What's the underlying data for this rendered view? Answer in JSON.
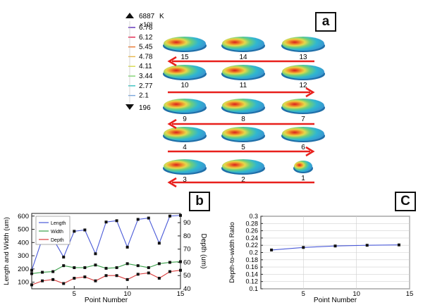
{
  "panel_labels": {
    "a": "a",
    "b": "b",
    "c": "C"
  },
  "colorbar": {
    "max_label": "6887",
    "unit": "K",
    "exponent": "×10³",
    "ticks": [
      "6.78",
      "6.12",
      "5.45",
      "4.78",
      "4.11",
      "3.44",
      "2.77",
      "2.1"
    ],
    "min_label": "196",
    "colors": [
      "#5b2bb5",
      "#e0204a",
      "#e8742b",
      "#e8b64a",
      "#d7d84b",
      "#7cd36e",
      "#35c0bf",
      "#7aa6dc"
    ]
  },
  "pools": {
    "numbers": [
      "15",
      "14",
      "13",
      "10",
      "11",
      "12",
      "9",
      "8",
      "7",
      "4",
      "5",
      "6",
      "3",
      "2",
      "1"
    ],
    "arrow_color": "#e8201c"
  },
  "chart_data": [
    {
      "id": "b",
      "type": "line",
      "xlabel": "Point Number",
      "ylabel": "Length and Width (um)",
      "y2label": "Depth (um)",
      "xlim": [
        1,
        15
      ],
      "ylim": [
        50,
        620
      ],
      "y2lim": [
        40,
        97
      ],
      "xticks": [
        5,
        10,
        15
      ],
      "yticks": [
        100,
        200,
        300,
        400,
        500,
        600
      ],
      "y2ticks": [
        40,
        50,
        60,
        70,
        80,
        90
      ],
      "legend": "top-left",
      "series": [
        {
          "name": "Length",
          "axis": "left",
          "color": "#4a5ad8",
          "x": [
            1,
            2,
            3,
            4,
            5,
            6,
            7,
            8,
            9,
            10,
            11,
            12,
            13,
            14,
            15
          ],
          "values": [
            190,
            430,
            430,
            290,
            485,
            495,
            315,
            555,
            565,
            365,
            575,
            585,
            395,
            600,
            605
          ]
        },
        {
          "name": "Width",
          "axis": "left",
          "color": "#3aa04a",
          "x": [
            1,
            2,
            3,
            4,
            5,
            6,
            7,
            8,
            9,
            10,
            11,
            12,
            13,
            14,
            15
          ],
          "values": [
            165,
            175,
            180,
            225,
            210,
            210,
            230,
            205,
            210,
            240,
            225,
            210,
            240,
            250,
            255
          ]
        },
        {
          "name": "Depth",
          "axis": "right",
          "color": "#d83a3a",
          "x": [
            1,
            2,
            3,
            4,
            5,
            6,
            7,
            8,
            9,
            10,
            11,
            12,
            13,
            14,
            15
          ],
          "values": [
            43,
            46,
            47,
            44,
            48,
            49,
            46,
            50,
            50,
            47,
            51,
            52,
            48,
            53,
            54
          ]
        }
      ]
    },
    {
      "id": "c",
      "type": "line",
      "xlabel": "Point Number",
      "ylabel": "Depth-to-width Ratio",
      "xlim": [
        1,
        15
      ],
      "ylim": [
        0.1,
        0.3
      ],
      "xticks": [
        5,
        10,
        15
      ],
      "yticks": [
        0.1,
        0.12,
        0.14,
        0.16,
        0.18,
        0.2,
        0.22,
        0.24,
        0.26,
        0.28,
        0.3
      ],
      "ytick_labels": [
        "0.1",
        "0.12",
        "0.14",
        "0.16",
        "0.18",
        "0.2",
        "0.22",
        "0.24",
        "0.26",
        "0.28",
        "0.3"
      ],
      "grid": true,
      "series": [
        {
          "color": "#4a5ad8",
          "x": [
            2,
            5,
            8,
            11,
            14
          ],
          "values": [
            0.207,
            0.214,
            0.218,
            0.22,
            0.221
          ]
        }
      ]
    }
  ]
}
